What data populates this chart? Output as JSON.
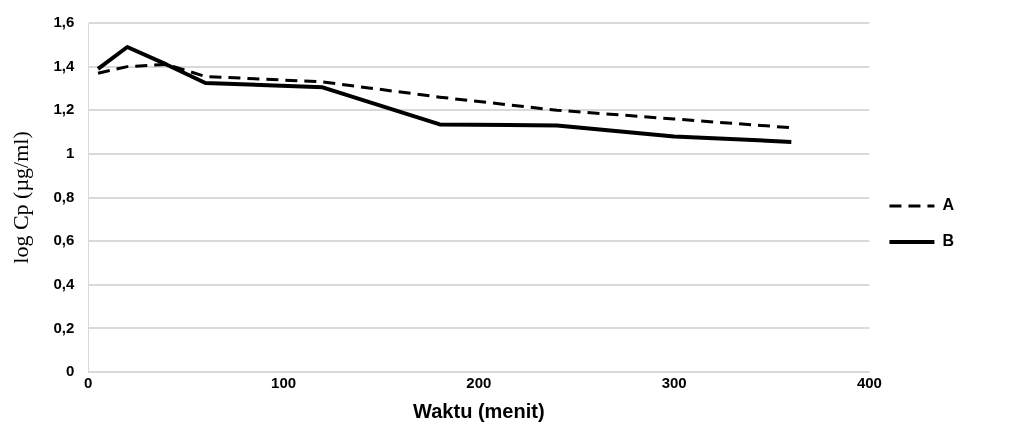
{
  "chart_data": {
    "type": "line",
    "xlabel": "Waktu (menit)",
    "ylabel": "log Cp (µg/ml)",
    "xlim": [
      0,
      400
    ],
    "xticks": [
      0,
      100,
      200,
      300,
      400
    ],
    "ylim": [
      0,
      1.6
    ],
    "yticks": [
      0,
      {
        "value": 0.2,
        "label": "0,2"
      },
      {
        "value": 0.4,
        "label": "0,4"
      },
      {
        "value": 0.6,
        "label": "0,6"
      },
      {
        "value": 0.8,
        "label": "0,8"
      },
      1,
      {
        "value": 1.2,
        "label": "1,2"
      },
      {
        "value": 1.4,
        "label": "1,4"
      },
      {
        "value": 1.6,
        "label": "1,6"
      }
    ],
    "grid": "y",
    "legend": "right",
    "marker": "none",
    "series": [
      {
        "name": "A",
        "color": "#000000",
        "line_style": "dashed",
        "x": [
          5,
          20,
          40,
          60,
          120,
          180,
          240,
          300,
          360
        ],
        "values": [
          1.37,
          1.4,
          1.41,
          1.355,
          1.33,
          1.26,
          1.2,
          1.16,
          1.12
        ]
      },
      {
        "name": "B",
        "color": "#000000",
        "line_style": "solid",
        "x": [
          5,
          20,
          40,
          60,
          120,
          180,
          240,
          300,
          360
        ],
        "values": [
          1.39,
          1.49,
          1.41,
          1.325,
          1.305,
          1.135,
          1.13,
          1.08,
          1.055
        ]
      }
    ]
  }
}
